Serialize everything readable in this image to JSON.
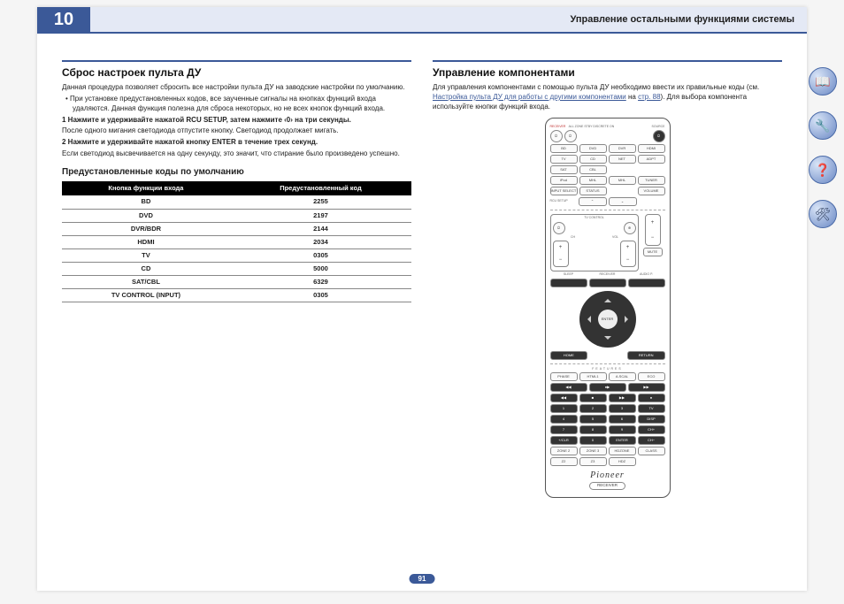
{
  "chapter_number": "10",
  "chapter_title": "Управление остальными функциями системы",
  "page_number": "91",
  "left": {
    "h1": "Сброс настроек пульта ДУ",
    "intro": "Данная процедура позволяет сбросить все настройки пульта ДУ на заводские настройки по умолчанию.",
    "bullet1": "При установке предустановленных кодов, все заученные сигналы на кнопках функций входа удаляются. Данная функция полезна для сброса некоторых, но не всех кнопок функций входа.",
    "step1": "1   Нажмите и удерживайте нажатой RCU SETUP, затем нажмите ‹0› на три секунды.",
    "step1_note": "После одного мигания светодиода отпустите кнопку. Светодиод продолжает мигать.",
    "step2": "2   Нажмите и удерживайте нажатой кнопку ENTER в течение трех секунд.",
    "step2_note": "Если светодиод высвечивается на одну секунду, это значит, что стирание было произведено успешно.",
    "table_title": "Предустановленные коды по умолчанию",
    "table": {
      "head1": "Кнопка функции входа",
      "head2": "Предустановленный код",
      "rows": [
        [
          "BD",
          "2255"
        ],
        [
          "DVD",
          "2197"
        ],
        [
          "DVR/BDR",
          "2144"
        ],
        [
          "HDMI",
          "2034"
        ],
        [
          "TV",
          "0305"
        ],
        [
          "CD",
          "5000"
        ],
        [
          "SAT/CBL",
          "6329"
        ],
        [
          "TV CONTROL (INPUT)",
          "0305"
        ]
      ]
    }
  },
  "right": {
    "h1": "Управление компонентами",
    "intro_a": "Для управления компонентами с помощью пульта ДУ необходимо ввести их правильные коды (см. ",
    "link": "Настройка пульта ДУ для работы с другими компонентами",
    "intro_b": " на ",
    "page_link": "стр. 88",
    "intro_c": "). Для выбора компонента используйте кнопки функций входа."
  },
  "remote": {
    "top_red": "RECEIVER",
    "top_labels": "ALL ZONE STBY DISCRETE ON",
    "source": "SOURCE",
    "row_input1": [
      "BD",
      "DVD",
      "DVR",
      "HDMI"
    ],
    "row_input2": [
      "TV",
      "CD",
      "NET",
      "ADPT"
    ],
    "row_input3": [
      "SAT",
      "CBL",
      "",
      ""
    ],
    "row_input4": [
      "iPod",
      "MHL",
      "MHL",
      "TUNER"
    ],
    "row_input5": [
      "INPUT SELECT",
      "STATUS",
      "",
      "VOLUME"
    ],
    "rcu": "RCU SETUP",
    "tv_control": "TV CONTROL",
    "ch": "CH",
    "vol": "VOL",
    "mute": "MUTE",
    "sleep": "SLEEP",
    "receiver_lbl": "RECEIVER",
    "dpad": {
      "enter": "ENTER"
    },
    "home": "HOME",
    "return": "RETURN",
    "features": "FEATURES",
    "feat_row": [
      "PHASE",
      "HTML1",
      "A.SCAL",
      "ECO"
    ],
    "transport1": [
      "◀◀",
      "▶",
      "▶▶"
    ],
    "transport2": [
      "◀◀",
      "■",
      "▶▶",
      "●"
    ],
    "num1": [
      "1",
      "2",
      "3",
      "TV"
    ],
    "num2": [
      "4",
      "5",
      "6",
      "DISP"
    ],
    "num3": [
      "7",
      "8",
      "9",
      "CH+"
    ],
    "num4": [
      "+/CLR",
      "0",
      "ENTER",
      "CH−"
    ],
    "zone_row": [
      "ZONE 2",
      "ZONE 3",
      "HDZONE",
      "CLASS"
    ],
    "small_row": [
      "Z2",
      "Z3",
      "HDZ",
      ""
    ],
    "brand": "Pioneer",
    "receiver_pill": "RECEIVER"
  }
}
